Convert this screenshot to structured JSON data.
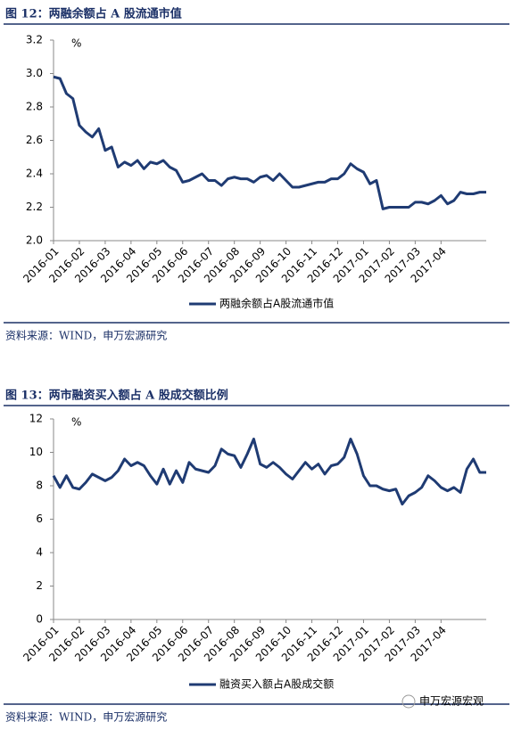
{
  "chart_data": [
    {
      "type": "line",
      "title": "图 12：两融余额占 A 股流通市值",
      "unit": "%",
      "source": "资料来源：WIND，申万宏源研究",
      "categories": [
        "2016-01",
        null,
        null,
        null,
        "2016-02",
        null,
        null,
        null,
        "2016-03",
        null,
        null,
        null,
        "2016-04",
        null,
        null,
        null,
        "2016-05",
        null,
        null,
        null,
        "2016-06",
        null,
        null,
        null,
        "2016-07",
        null,
        null,
        null,
        "2016-08",
        null,
        null,
        null,
        "2016-09",
        null,
        null,
        null,
        "2016-10",
        null,
        null,
        null,
        "2016-11",
        null,
        null,
        null,
        "2016-12",
        null,
        null,
        null,
        "2017-01",
        null,
        null,
        null,
        "2017-02",
        null,
        null,
        null,
        "2017-03",
        null,
        null,
        null,
        "2017-04",
        null,
        null,
        null,
        null,
        null,
        null,
        null
      ],
      "series": [
        {
          "name": "两融余额占A股流通市值",
          "color": "#1f3b73",
          "values": [
            2.98,
            2.97,
            2.88,
            2.85,
            2.69,
            2.65,
            2.62,
            2.67,
            2.54,
            2.56,
            2.44,
            2.47,
            2.45,
            2.48,
            2.43,
            2.47,
            2.46,
            2.48,
            2.44,
            2.42,
            2.35,
            2.36,
            2.38,
            2.4,
            2.36,
            2.36,
            2.33,
            2.37,
            2.38,
            2.37,
            2.37,
            2.35,
            2.38,
            2.39,
            2.36,
            2.4,
            2.36,
            2.32,
            2.32,
            2.33,
            2.34,
            2.35,
            2.35,
            2.37,
            2.37,
            2.4,
            2.46,
            2.43,
            2.41,
            2.34,
            2.36,
            2.19,
            2.2,
            2.2,
            2.2,
            2.2,
            2.23,
            2.23,
            2.22,
            2.24,
            2.27,
            2.22,
            2.24,
            2.29,
            2.28,
            2.28,
            2.29,
            2.29
          ]
        }
      ],
      "ylim": [
        2,
        3.2
      ],
      "yticks": [
        {
          "value": 2,
          "label": "2.0"
        },
        2.2,
        2.4,
        2.6,
        2.8,
        {
          "value": 3,
          "label": "3.0"
        },
        3.2
      ]
    },
    {
      "type": "line",
      "title": "图 13：两市融资买入额占 A 股成交额比例",
      "unit": "%",
      "source": "资料来源：WIND，申万宏源研究",
      "categories": [
        "2016-01",
        null,
        null,
        null,
        "2016-02",
        null,
        null,
        null,
        "2016-03",
        null,
        null,
        null,
        "2016-04",
        null,
        null,
        null,
        "2016-05",
        null,
        null,
        null,
        "2016-06",
        null,
        null,
        null,
        "2016-07",
        null,
        null,
        null,
        "2016-08",
        null,
        null,
        null,
        "2016-09",
        null,
        null,
        null,
        "2016-10",
        null,
        null,
        null,
        "2016-11",
        null,
        null,
        null,
        "2016-12",
        null,
        null,
        null,
        "2017-01",
        null,
        null,
        null,
        "2017-02",
        null,
        null,
        null,
        "2017-03",
        null,
        null,
        null,
        "2017-04",
        null,
        null,
        null,
        null,
        null,
        null,
        null
      ],
      "series": [
        {
          "name": "融资买入额占A股成交额",
          "color": "#1f3b73",
          "values": [
            8.6,
            7.9,
            8.6,
            7.9,
            7.8,
            8.2,
            8.7,
            8.5,
            8.3,
            8.5,
            8.9,
            9.6,
            9.2,
            9.4,
            9.2,
            8.6,
            8.1,
            9.0,
            8.1,
            8.9,
            8.2,
            9.4,
            9.0,
            8.9,
            8.8,
            9.2,
            10.2,
            9.9,
            9.8,
            9.1,
            9.9,
            10.8,
            9.3,
            9.1,
            9.4,
            9.1,
            8.7,
            8.4,
            8.9,
            9.4,
            9.0,
            9.3,
            8.7,
            9.2,
            9.3,
            9.7,
            10.8,
            9.9,
            8.6,
            8.0,
            8.0,
            7.8,
            7.7,
            7.8,
            6.9,
            7.4,
            7.6,
            7.9,
            8.6,
            8.3,
            7.9,
            7.7,
            7.9,
            7.6,
            9.0,
            9.6,
            8.8,
            8.8
          ]
        }
      ],
      "ylim": [
        0,
        12
      ],
      "yticks": [
        0,
        2,
        4,
        6,
        8,
        10,
        12
      ]
    }
  ],
  "watermark": "申万宏源宏观"
}
